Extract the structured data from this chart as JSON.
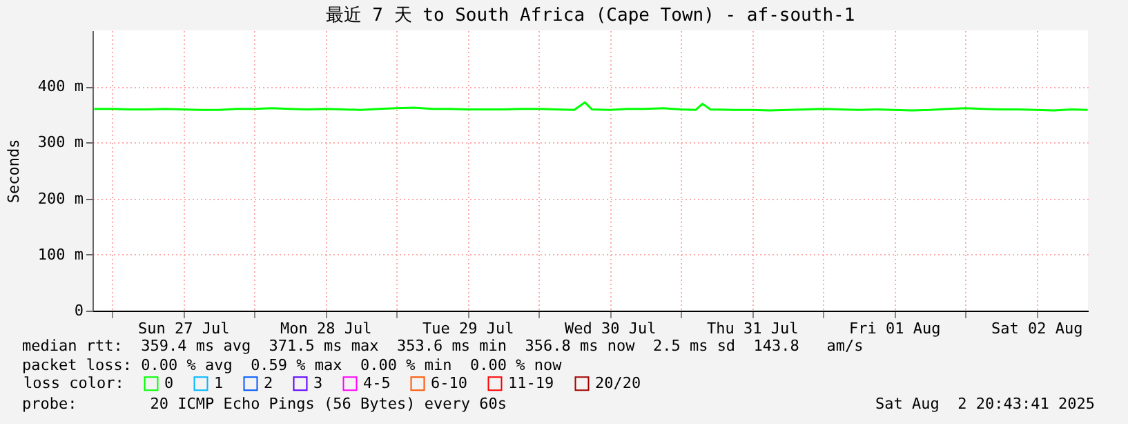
{
  "chart_data": {
    "type": "line",
    "title": "最近 7 天 to South Africa (Cape Town) - af-south-1",
    "ylabel": "Seconds",
    "x": [
      "2025-07-26T21:00",
      "2025-07-27T00:00",
      "2025-07-27T03:00",
      "2025-07-27T06:00",
      "2025-07-27T09:00",
      "2025-07-27T12:00",
      "2025-07-27T15:00",
      "2025-07-27T18:00",
      "2025-07-27T21:00",
      "2025-07-28T00:00",
      "2025-07-28T03:00",
      "2025-07-28T06:00",
      "2025-07-28T09:00",
      "2025-07-28T12:00",
      "2025-07-28T15:00",
      "2025-07-28T18:00",
      "2025-07-28T21:00",
      "2025-07-29T00:00",
      "2025-07-29T03:00",
      "2025-07-29T06:00",
      "2025-07-29T09:00",
      "2025-07-29T12:00",
      "2025-07-29T15:00",
      "2025-07-29T18:00",
      "2025-07-29T21:00",
      "2025-07-30T00:00",
      "2025-07-30T03:00",
      "2025-07-30T06:00",
      "2025-07-30T07:50",
      "2025-07-30T09:00",
      "2025-07-30T12:00",
      "2025-07-30T15:00",
      "2025-07-30T18:00",
      "2025-07-30T21:00",
      "2025-07-31T00:00",
      "2025-07-31T02:30",
      "2025-07-31T03:40",
      "2025-07-31T05:00",
      "2025-07-31T09:00",
      "2025-07-31T12:00",
      "2025-07-31T15:00",
      "2025-07-31T18:00",
      "2025-07-31T21:00",
      "2025-08-01T00:00",
      "2025-08-01T03:00",
      "2025-08-01T06:00",
      "2025-08-01T09:00",
      "2025-08-01T12:00",
      "2025-08-01T15:00",
      "2025-08-01T18:00",
      "2025-08-01T21:00",
      "2025-08-02T00:00",
      "2025-08-02T03:00",
      "2025-08-02T06:00",
      "2025-08-02T09:00",
      "2025-08-02T12:00",
      "2025-08-02T15:00",
      "2025-08-02T18:00",
      "2025-08-02T20:40"
    ],
    "series": [
      {
        "name": "0",
        "color": "#00ff00",
        "values": [
          360,
          360,
          359,
          359,
          360,
          359,
          358,
          358,
          360,
          360,
          361,
          360,
          359,
          360,
          359,
          358,
          360,
          361,
          362,
          360,
          360,
          359,
          359,
          359,
          360,
          360,
          359,
          358,
          371.5,
          359,
          358,
          360,
          360,
          361,
          359,
          358,
          369,
          359,
          358,
          358,
          357,
          358,
          359,
          360,
          359,
          358,
          359,
          358,
          357,
          358,
          360,
          361,
          360,
          359,
          359,
          358,
          357,
          359,
          358
        ]
      },
      {
        "name": "1",
        "color": "#00b8ff",
        "values": [
          null,
          null,
          null,
          null,
          null,
          null,
          null,
          null,
          null,
          null,
          null,
          null,
          null,
          null,
          null,
          null,
          null,
          null,
          null,
          null,
          null,
          null,
          null,
          null,
          null,
          null,
          null,
          null,
          null,
          null,
          null,
          null,
          null,
          null,
          null,
          null,
          null,
          null,
          null,
          null,
          null,
          null,
          null,
          null,
          null,
          null,
          null,
          null,
          null,
          null,
          null,
          null,
          null,
          null,
          null,
          null,
          null,
          null,
          null
        ]
      },
      {
        "name": "2",
        "color": "#0059ff",
        "values": [
          null,
          null,
          null,
          null,
          null,
          null,
          null,
          null,
          null,
          null,
          null,
          null,
          null,
          null,
          null,
          null,
          null,
          null,
          null,
          null,
          null,
          null,
          null,
          null,
          null,
          null,
          null,
          null,
          null,
          null,
          null,
          null,
          null,
          null,
          null,
          null,
          null,
          null,
          null,
          null,
          null,
          null,
          null,
          null,
          null,
          null,
          null,
          null,
          null,
          null,
          null,
          null,
          null,
          null,
          null,
          null,
          null,
          null,
          null
        ]
      },
      {
        "name": "3",
        "color": "#5e00ff",
        "values": [
          null,
          null,
          null,
          null,
          null,
          null,
          null,
          null,
          null,
          null,
          null,
          null,
          null,
          null,
          null,
          null,
          null,
          null,
          null,
          null,
          null,
          null,
          null,
          null,
          null,
          null,
          null,
          null,
          null,
          null,
          null,
          null,
          null,
          null,
          null,
          null,
          null,
          null,
          null,
          null,
          null,
          null,
          null,
          null,
          null,
          null,
          null,
          null,
          null,
          null,
          null,
          null,
          null,
          null,
          null,
          null,
          null,
          null,
          null
        ]
      },
      {
        "name": "4-5",
        "color": "#ff00ff",
        "values": [
          null,
          null,
          null,
          null,
          null,
          null,
          null,
          null,
          null,
          null,
          null,
          null,
          null,
          null,
          null,
          null,
          null,
          null,
          null,
          null,
          null,
          null,
          null,
          null,
          null,
          null,
          null,
          null,
          null,
          null,
          null,
          null,
          null,
          null,
          null,
          null,
          null,
          null,
          null,
          null,
          null,
          null,
          null,
          null,
          null,
          null,
          null,
          null,
          null,
          null,
          null,
          null,
          null,
          null,
          null,
          null,
          null,
          null,
          null
        ]
      },
      {
        "name": "6-10",
        "color": "#ff5500",
        "values": [
          null,
          null,
          null,
          null,
          null,
          null,
          null,
          null,
          null,
          null,
          null,
          null,
          null,
          null,
          null,
          null,
          null,
          null,
          null,
          null,
          null,
          null,
          null,
          null,
          null,
          null,
          null,
          null,
          null,
          null,
          null,
          null,
          null,
          null,
          null,
          null,
          null,
          null,
          null,
          null,
          null,
          null,
          null,
          null,
          null,
          null,
          null,
          null,
          null,
          null,
          null,
          null,
          null,
          null,
          null,
          null,
          null,
          null,
          null
        ]
      },
      {
        "name": "11-19",
        "color": "#ff0000",
        "values": [
          null,
          null,
          null,
          null,
          null,
          null,
          null,
          null,
          null,
          null,
          null,
          null,
          null,
          null,
          null,
          null,
          null,
          null,
          null,
          null,
          null,
          null,
          null,
          null,
          null,
          null,
          null,
          null,
          null,
          null,
          null,
          null,
          null,
          null,
          null,
          null,
          null,
          null,
          null,
          null,
          null,
          null,
          null,
          null,
          null,
          null,
          null,
          null,
          null,
          null,
          null,
          null,
          null,
          null,
          null,
          null,
          null,
          null,
          null
        ]
      },
      {
        "name": "20/20",
        "color": "#a10000",
        "values": [
          null,
          null,
          null,
          null,
          null,
          null,
          null,
          null,
          null,
          null,
          null,
          null,
          null,
          null,
          null,
          null,
          null,
          null,
          null,
          null,
          null,
          null,
          null,
          null,
          null,
          null,
          null,
          null,
          null,
          null,
          null,
          null,
          null,
          null,
          null,
          null,
          null,
          null,
          null,
          null,
          null,
          null,
          null,
          null,
          null,
          null,
          null,
          null,
          null,
          null,
          null,
          null,
          null,
          null,
          null,
          null,
          null,
          null,
          null
        ]
      }
    ],
    "legend_title": "loss color:",
    "legend": "bottom",
    "xlim": [
      "2025-07-26T20:43",
      "2025-08-02T20:43"
    ],
    "xticks": [
      {
        "value": "2025-07-27T00:00",
        "label": null
      },
      {
        "value": "2025-07-27T12:00",
        "label": "Sun 27 Jul"
      },
      {
        "value": "2025-07-28T00:00",
        "label": null
      },
      {
        "value": "2025-07-28T12:00",
        "label": "Mon 28 Jul"
      },
      {
        "value": "2025-07-29T00:00",
        "label": null
      },
      {
        "value": "2025-07-29T12:00",
        "label": "Tue 29 Jul"
      },
      {
        "value": "2025-07-30T00:00",
        "label": null
      },
      {
        "value": "2025-07-30T12:00",
        "label": "Wed 30 Jul"
      },
      {
        "value": "2025-07-31T00:00",
        "label": null
      },
      {
        "value": "2025-07-31T12:00",
        "label": "Thu 31 Jul"
      },
      {
        "value": "2025-08-01T00:00",
        "label": null
      },
      {
        "value": "2025-08-01T12:00",
        "label": "Fri 01 Aug"
      },
      {
        "value": "2025-08-02T00:00",
        "label": null
      },
      {
        "value": "2025-08-02T12:00",
        "label": "Sat 02 Aug"
      }
    ],
    "ylim": [
      0,
      500
    ],
    "yticks": [
      0,
      {
        "value": 100,
        "label": "100 m"
      },
      {
        "value": 200,
        "label": "200 m"
      },
      {
        "value": 300,
        "label": "300 m"
      },
      {
        "value": 400,
        "label": "400 m"
      }
    ],
    "grid": true,
    "line_style": "solid",
    "annotations": [
      "median rtt:  359.4 ms avg  371.5 ms max  353.6 ms min  356.8 ms now  2.5 ms sd  143.8   am/s",
      "packet loss: 0.00 % avg  0.59 % max  0.00 % min  0.00 % now",
      "probe:        20 ICMP Echo Pings (56 Bytes) every 60s",
      "Sat Aug  2 20:43:41 2025"
    ]
  }
}
